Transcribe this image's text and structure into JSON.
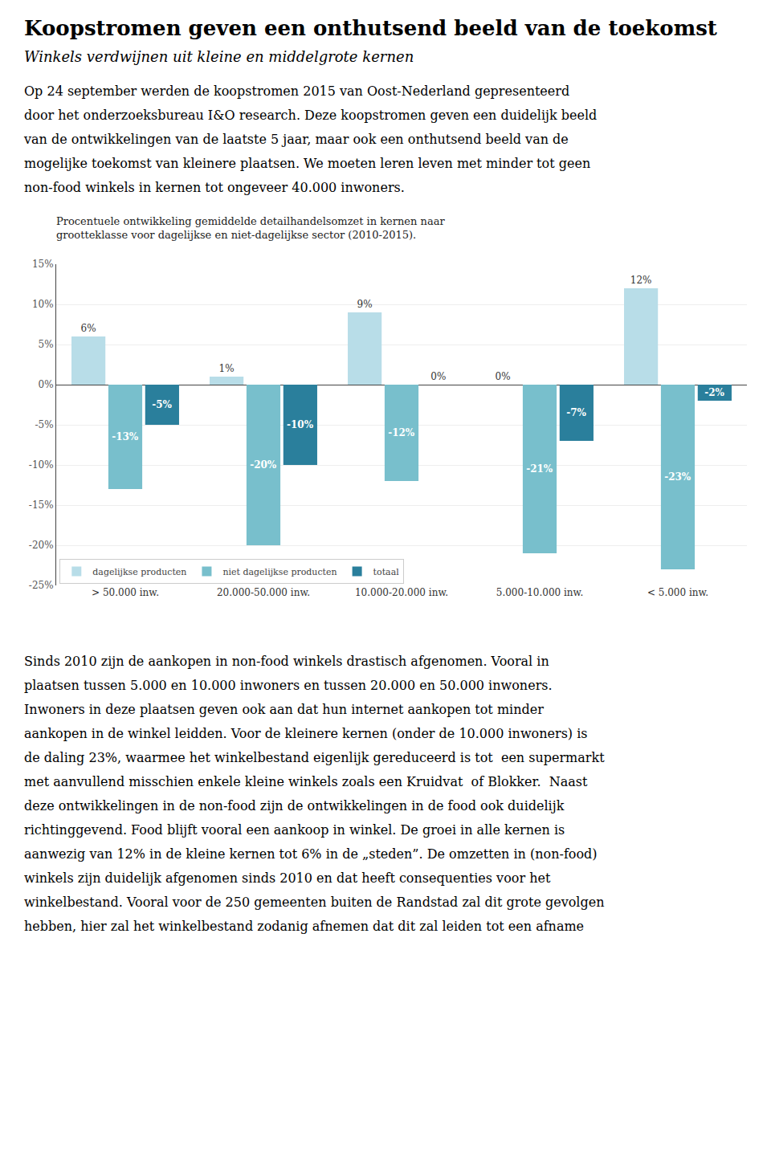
{
  "title": "Koopstromen geven een onthutsend beeld van de toekomst",
  "subtitle": "Winkels verdwijnen uit kleine en middelgrote kernen",
  "intro_text": [
    "Op 24 september werden de koopstromen 2015 van Oost-Nederland gepresenteerd",
    "door het onderzoeksbureau I&O research. Deze koopstromen geven een duidelijk beeld",
    "van de ontwikkelingen van de laatste 5 jaar, maar ook een onthutsend beeld van de",
    "mogelijke toekomst van kleinere plaatsen. We moeten leren leven met minder tot geen",
    "non-food winkels in kernen tot ongeveer 40.000 inwoners."
  ],
  "body_text": [
    "Sinds 2010 zijn de aankopen in non-food winkels drastisch afgenomen. Vooral in",
    "plaatsen tussen 5.000 en 10.000 inwoners en tussen 20.000 en 50.000 inwoners.",
    "Inwoners in deze plaatsen geven ook aan dat hun internet aankopen tot minder",
    "aankopen in de winkel leidden. Voor de kleinere kernen (onder de 10.000 inwoners) is",
    "de daling 23%, waarmee het winkelbestand eigenlijk gereduceerd is tot  een supermarkt",
    "met aanvullend misschien enkele kleine winkels zoals een Kruidvat  of Blokker.  Naast",
    "deze ontwikkelingen in de non-food zijn de ontwikkelingen in de food ook duidelijk",
    "richtinggevend. Food blijft vooral een aankoop in winkel. De groei in alle kernen is",
    "aanwezig van 12% in de kleine kernen tot 6% in de „steden”. De omzetten in (non-food)",
    "winkels zijn duidelijk afgenomen sinds 2010 en dat heeft consequenties voor het",
    "winkelbestand. Vooral voor de 250 gemeenten buiten de Randstad zal dit grote gevolgen",
    "hebben, hier zal het winkelbestand zodanig afnemen dat dit zal leiden tot een afname"
  ],
  "chart_data": {
    "type": "bar",
    "title": [
      "Procentuele ontwikkeling gemiddelde detailhandelsomzet in kernen naar",
      "grootteklasse voor dagelijkse en niet-dagelijkse sector (2010-2015)."
    ],
    "categories": [
      "> 50.000 inw.",
      "20.000-50.000 inw.",
      "10.000-20.000 inw.",
      "5.000-10.000 inw.",
      "< 5.000 inw."
    ],
    "series": [
      {
        "name": "dagelijkse producten",
        "color": "#b8dde8",
        "values": [
          6,
          1,
          9,
          0,
          12
        ],
        "value_labels": [
          "6%",
          "1%",
          "9%",
          "0%",
          "12%"
        ]
      },
      {
        "name": "niet dagelijkse producten",
        "color": "#78bfcc",
        "values": [
          -13,
          -20,
          -12,
          -21,
          -23
        ],
        "value_labels": [
          "-13%",
          "-20%",
          "-12%",
          "-21%",
          "-23%"
        ]
      },
      {
        "name": "totaal",
        "color": "#2a7f9c",
        "values": [
          -5,
          -10,
          0,
          -7,
          -2
        ],
        "value_labels": [
          "-5%",
          "-10%",
          "0%",
          "-7%",
          "-2%"
        ]
      }
    ],
    "ylim": [
      -25,
      15
    ],
    "yticks": [
      {
        "value": -25,
        "label": "-25%"
      },
      {
        "value": -20,
        "label": "-20%"
      },
      {
        "value": -15,
        "label": "-15%"
      },
      {
        "value": -10,
        "label": "-10%"
      },
      {
        "value": -5,
        "label": "-5%"
      },
      {
        "value": 0,
        "label": "0%"
      },
      {
        "value": 5,
        "label": "5%"
      },
      {
        "value": 10,
        "label": "10%"
      },
      {
        "value": 15,
        "label": "15%"
      }
    ],
    "grid": true,
    "legend": "lower left",
    "data_labels": true
  }
}
